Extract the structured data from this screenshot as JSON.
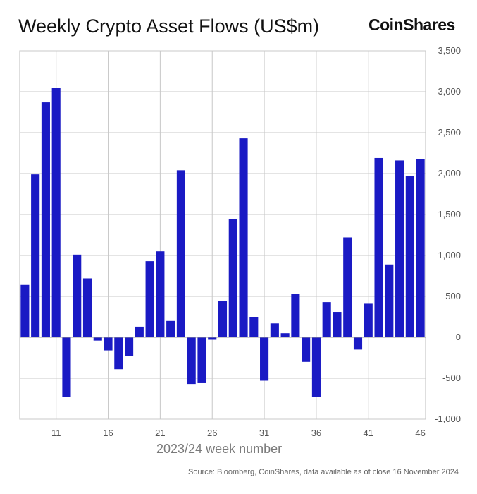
{
  "chart_data": {
    "type": "bar",
    "title": "Weekly Crypto Asset Flows (US$m)",
    "brand": "CoinShares",
    "xlabel": "2023/24 week number",
    "ylabel": "",
    "source": "Source: Bloomberg, CoinShares, data available as of close 16 November 2024",
    "ylim": [
      -1000,
      3500
    ],
    "yticks": [
      -1000,
      -500,
      0,
      500,
      1000,
      1500,
      2000,
      2500,
      3000,
      3500
    ],
    "ytick_labels": [
      "-1,000",
      "-500",
      "0",
      "500",
      "1,000",
      "1,500",
      "2,000",
      "2,500",
      "3,000",
      "3,500"
    ],
    "y_axis_side": "right",
    "x_first_week": 8,
    "xticks": [
      11,
      16,
      21,
      26,
      31,
      36,
      41,
      46
    ],
    "grid": true,
    "bar_color": "#1a1ac4",
    "series": [
      {
        "weeks": [
          8,
          9,
          10,
          11,
          12,
          13,
          14,
          15,
          16,
          17,
          18,
          19,
          20,
          21,
          22,
          23,
          24,
          25,
          26,
          27,
          28,
          29,
          30,
          31,
          32,
          33,
          34,
          35,
          36,
          37,
          38,
          39,
          40,
          41,
          42,
          43,
          44,
          45,
          46
        ],
        "values": [
          640,
          1990,
          2870,
          3050,
          -730,
          1010,
          720,
          -40,
          -160,
          -390,
          -230,
          130,
          930,
          1050,
          200,
          2040,
          -570,
          -560,
          -30,
          440,
          1440,
          2430,
          250,
          -530,
          170,
          50,
          530,
          -300,
          -730,
          430,
          310,
          1220,
          -150,
          410,
          2190,
          890,
          2160,
          1970,
          2180
        ]
      }
    ]
  }
}
